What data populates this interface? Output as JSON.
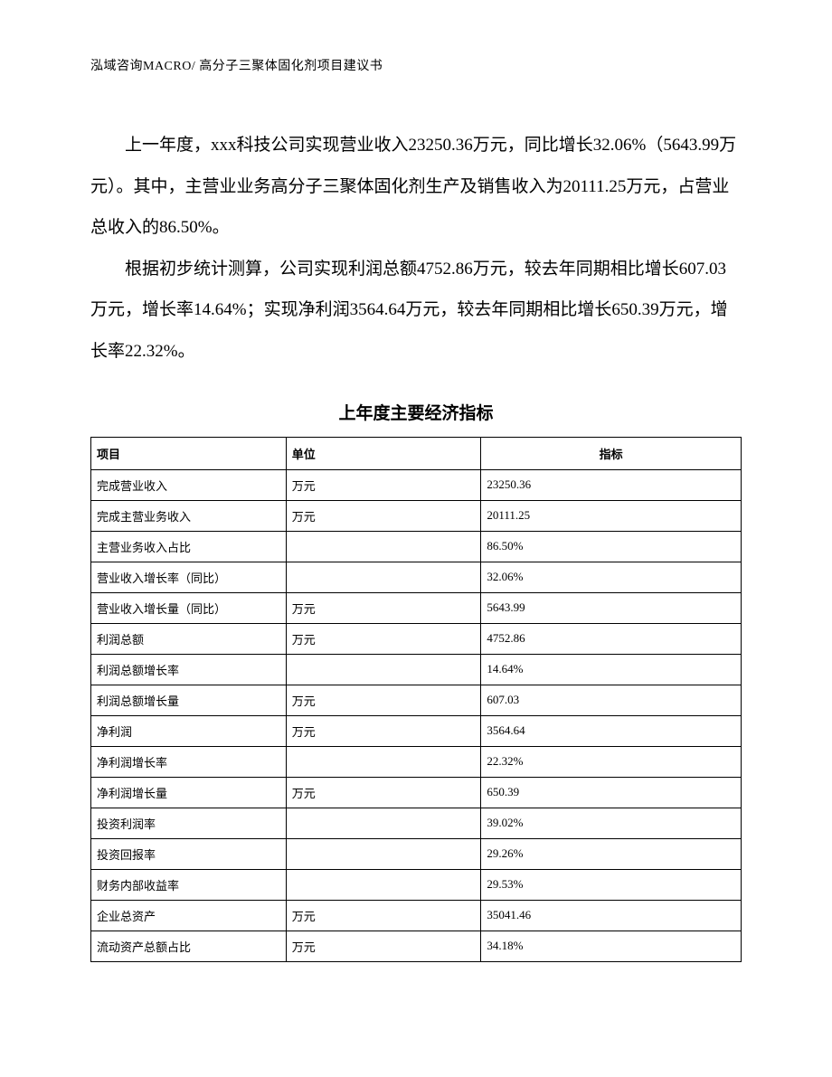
{
  "header": {
    "text": "泓域咨询MACRO/   高分子三聚体固化剂项目建议书"
  },
  "body": {
    "p1": "上一年度，xxx科技公司实现营业收入23250.36万元，同比增长32.06%（5643.99万元）。其中，主营业业务高分子三聚体固化剂生产及销售收入为20111.25万元，占营业总收入的86.50%。",
    "p2": "根据初步统计测算，公司实现利润总额4752.86万元，较去年同期相比增长607.03万元，增长率14.64%；实现净利润3564.64万元，较去年同期相比增长650.39万元，增长率22.32%。"
  },
  "table": {
    "title": "上年度主要经济指标",
    "headers": {
      "c1": "项目",
      "c2": "单位",
      "c3": "指标"
    },
    "rows": [
      {
        "c1": "完成营业收入",
        "c2": "万元",
        "c3": "23250.36"
      },
      {
        "c1": "完成主营业务收入",
        "c2": "万元",
        "c3": "20111.25"
      },
      {
        "c1": "主营业务收入占比",
        "c2": "",
        "c3": "86.50%"
      },
      {
        "c1": "营业收入增长率（同比）",
        "c2": "",
        "c3": "32.06%"
      },
      {
        "c1": "营业收入增长量（同比）",
        "c2": "万元",
        "c3": "5643.99"
      },
      {
        "c1": "利润总额",
        "c2": "万元",
        "c3": "4752.86"
      },
      {
        "c1": "利润总额增长率",
        "c2": "",
        "c3": "14.64%"
      },
      {
        "c1": "利润总额增长量",
        "c2": "万元",
        "c3": "607.03"
      },
      {
        "c1": "净利润",
        "c2": "万元",
        "c3": "3564.64"
      },
      {
        "c1": "净利润增长率",
        "c2": "",
        "c3": "22.32%"
      },
      {
        "c1": "净利润增长量",
        "c2": "万元",
        "c3": "650.39"
      },
      {
        "c1": "投资利润率",
        "c2": "",
        "c3": "39.02%"
      },
      {
        "c1": "投资回报率",
        "c2": "",
        "c3": "29.26%"
      },
      {
        "c1": "财务内部收益率",
        "c2": "",
        "c3": "29.53%"
      },
      {
        "c1": "企业总资产",
        "c2": "万元",
        "c3": "35041.46"
      },
      {
        "c1": "流动资产总额占比",
        "c2": "万元",
        "c3": "34.18%"
      }
    ]
  }
}
